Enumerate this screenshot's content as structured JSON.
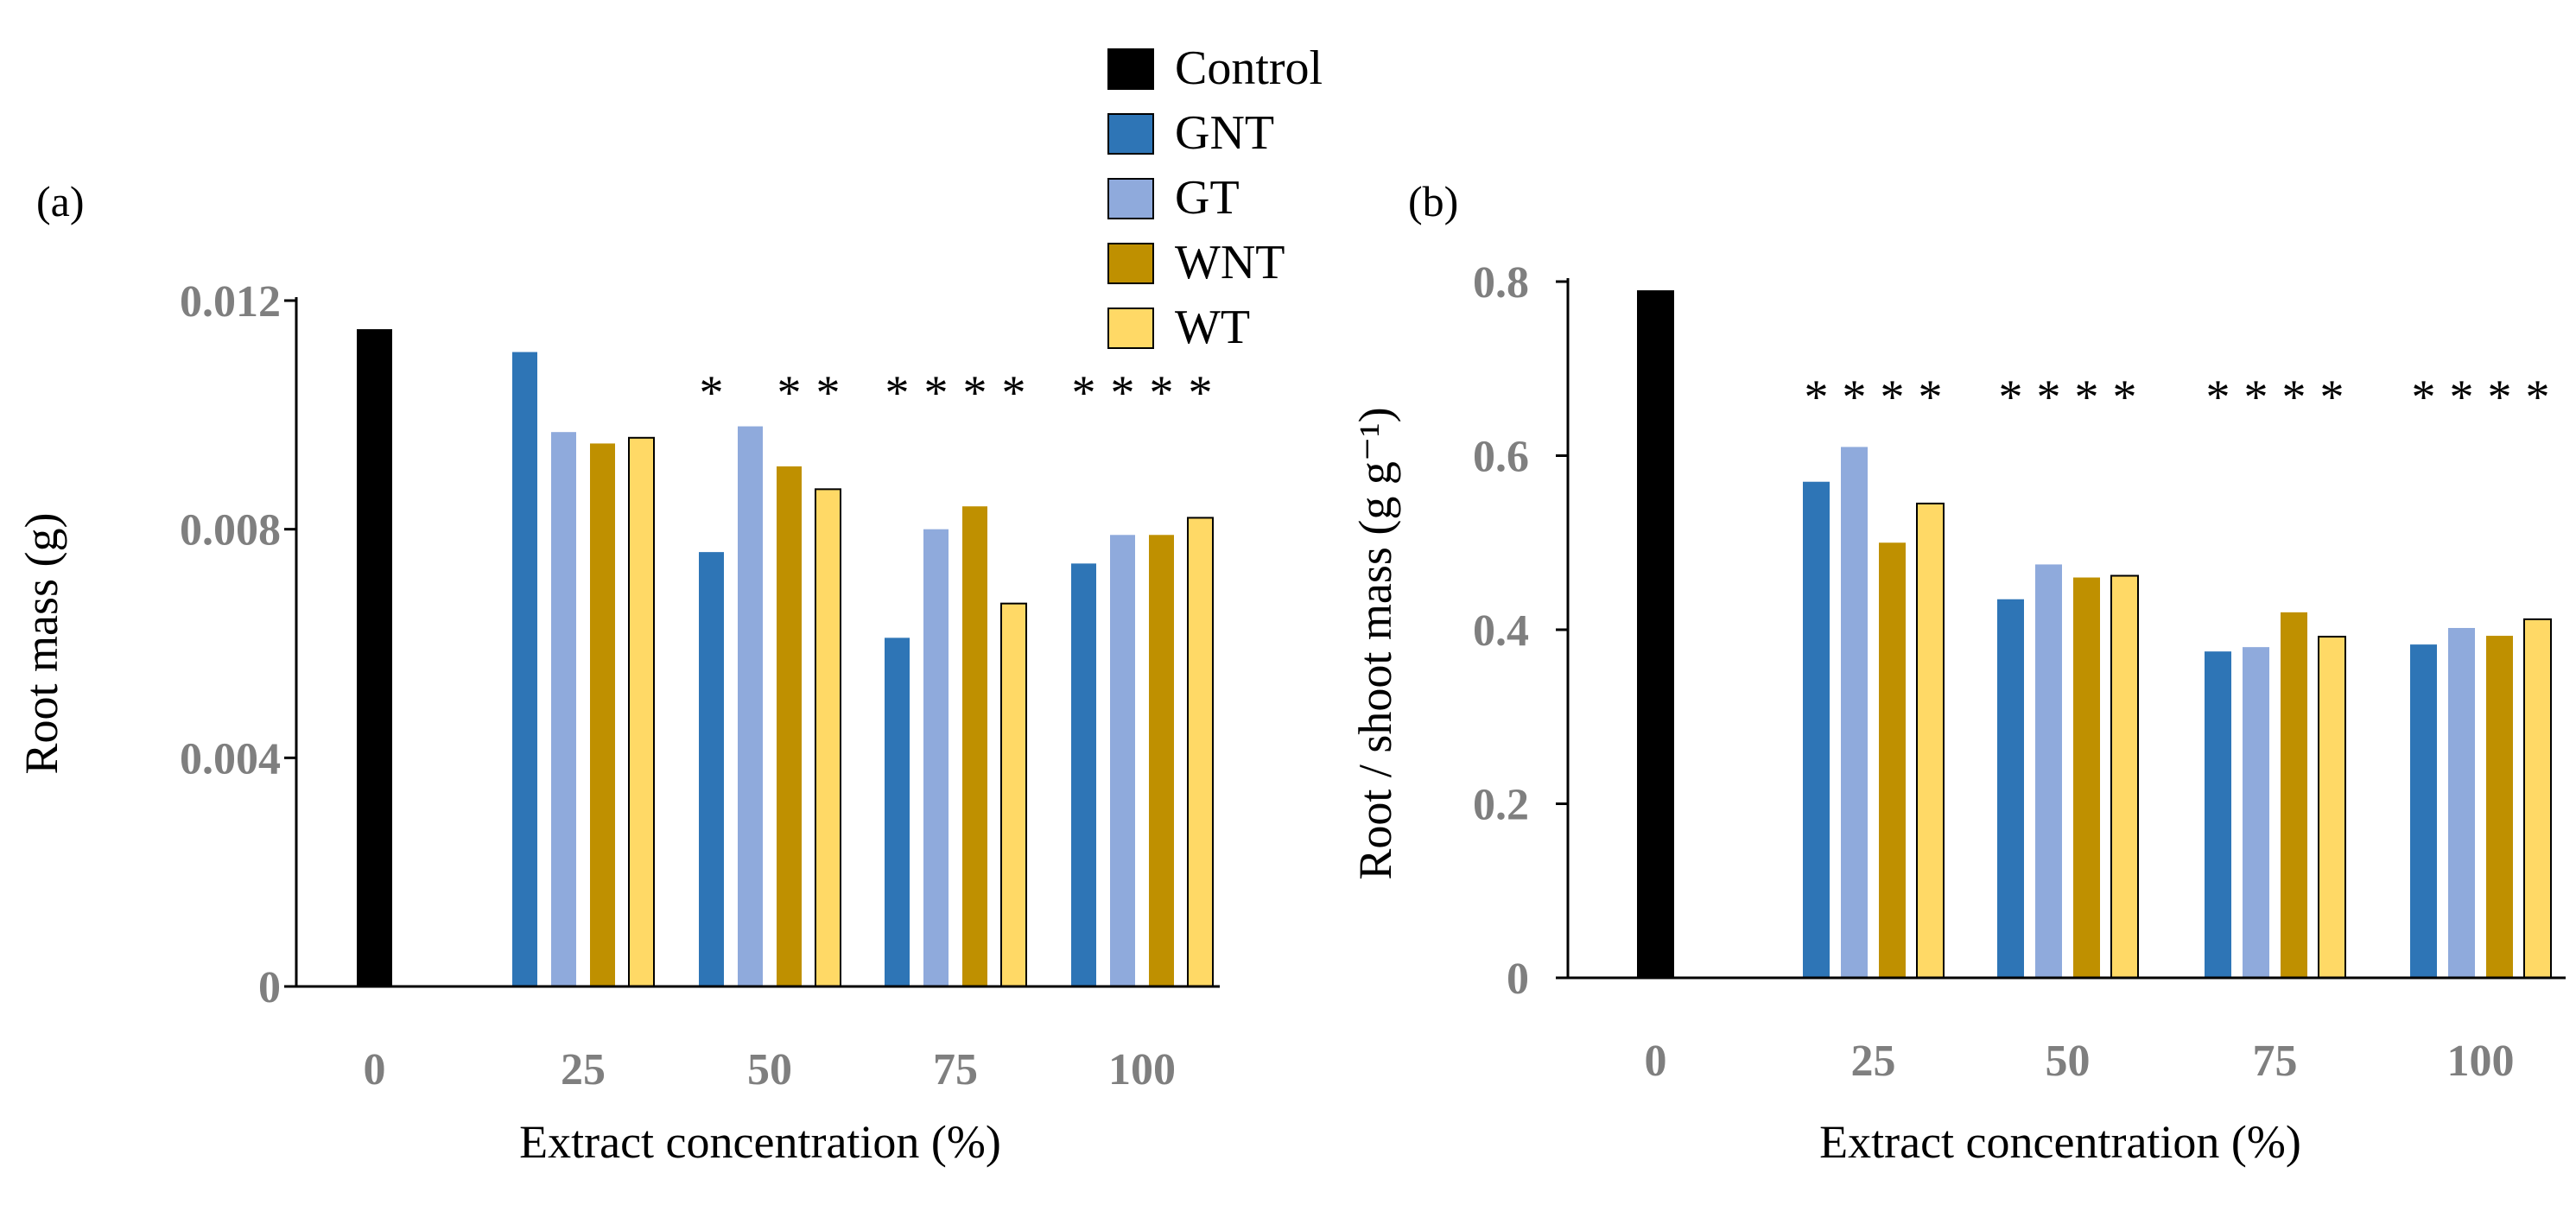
{
  "legend": {
    "entries": [
      {
        "name": "Control",
        "color": "#000000"
      },
      {
        "name": "GNT",
        "color": "#2e75b6"
      },
      {
        "name": "GT",
        "color": "#8faadc"
      },
      {
        "name": "WNT",
        "color": "#bf9000"
      },
      {
        "name": "WT",
        "color": "#ffd966"
      }
    ]
  },
  "chart_data": [
    {
      "type": "bar",
      "panel_label": "(a)",
      "title": "",
      "xlabel": "Extract concentration (%)",
      "ylabel": "Root mass (g)",
      "categories": [
        "0",
        "25",
        "50",
        "75",
        "100"
      ],
      "yticks": [
        "0",
        "0.004",
        "0.008",
        "0.012"
      ],
      "ylim": [
        0,
        0.012
      ],
      "series": [
        {
          "name": "Control",
          "color": "#000000",
          "values": [
            0.0115,
            null,
            null,
            null,
            null
          ]
        },
        {
          "name": "GNT",
          "color": "#2e75b6",
          "values": [
            null,
            0.0111,
            0.0076,
            0.0061,
            0.0074
          ]
        },
        {
          "name": "GT",
          "color": "#8faadc",
          "values": [
            null,
            0.0097,
            0.0098,
            0.008,
            0.0079
          ]
        },
        {
          "name": "WNT",
          "color": "#bf9000",
          "values": [
            null,
            0.0095,
            0.0091,
            0.0084,
            0.0079
          ]
        },
        {
          "name": "WT",
          "color": "#ffd966",
          "values": [
            null,
            0.0096,
            0.0087,
            0.0067,
            0.0082
          ]
        }
      ],
      "significance": [
        [
          "",
          "",
          "",
          ""
        ],
        [
          "",
          "",
          "",
          ""
        ],
        [
          "*",
          "",
          "*",
          "*"
        ],
        [
          "*",
          "*",
          "*",
          "*"
        ],
        [
          "*",
          "*",
          "*",
          "*"
        ]
      ]
    },
    {
      "type": "bar",
      "panel_label": "(b)",
      "title": "",
      "xlabel": "Extract concentration (%)",
      "ylabel": "Root / shoot mass (g g⁻¹)",
      "categories": [
        "0",
        "25",
        "50",
        "75",
        "100"
      ],
      "yticks": [
        "0",
        "0.2",
        "0.4",
        "0.6",
        "0.8"
      ],
      "ylim": [
        0,
        0.8
      ],
      "series": [
        {
          "name": "Control",
          "color": "#000000",
          "values": [
            0.79,
            null,
            null,
            null,
            null
          ]
        },
        {
          "name": "GNT",
          "color": "#2e75b6",
          "values": [
            null,
            0.57,
            0.435,
            0.375,
            0.383
          ]
        },
        {
          "name": "GT",
          "color": "#8faadc",
          "values": [
            null,
            0.61,
            0.475,
            0.38,
            0.402
          ]
        },
        {
          "name": "WNT",
          "color": "#bf9000",
          "values": [
            null,
            0.5,
            0.46,
            0.42,
            0.393
          ]
        },
        {
          "name": "WT",
          "color": "#ffd966",
          "values": [
            null,
            0.545,
            0.462,
            0.392,
            0.412
          ]
        }
      ],
      "significance": [
        [
          "",
          "",
          "",
          ""
        ],
        [
          "*",
          "*",
          "*",
          "*"
        ],
        [
          "*",
          "*",
          "*",
          "*"
        ],
        [
          "*",
          "*",
          "*",
          "*"
        ],
        [
          "*",
          "*",
          "*",
          "*"
        ]
      ]
    }
  ]
}
